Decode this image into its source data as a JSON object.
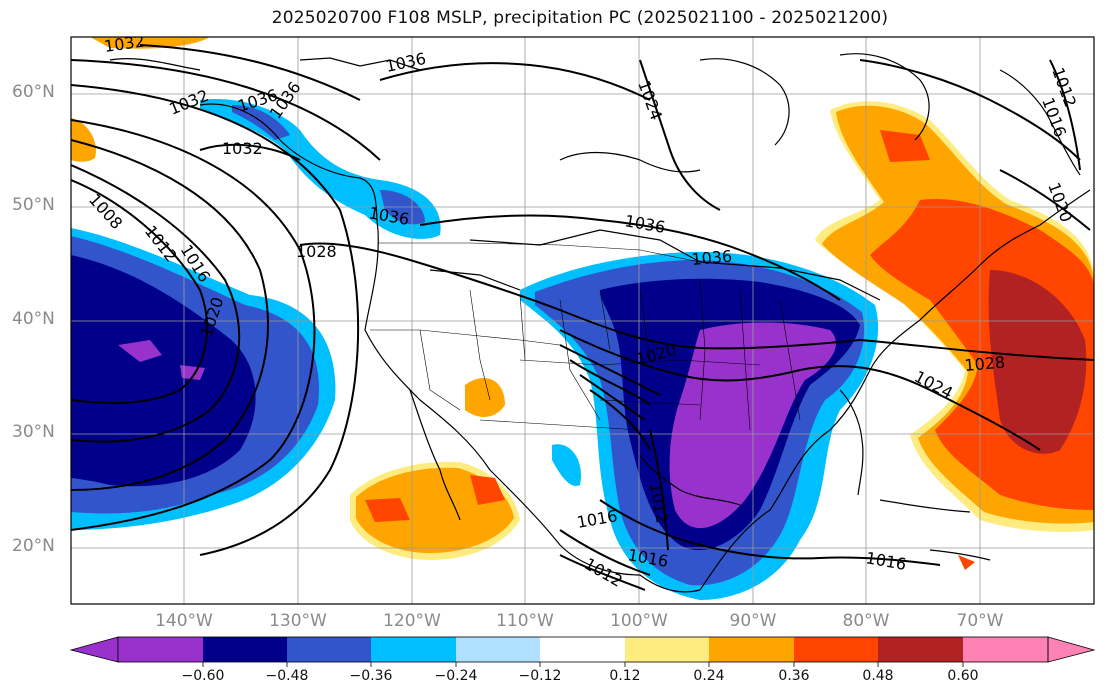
{
  "title": "2025020700 F108 MSLP, precipitation PC (2025021100 - 2025021200)",
  "lat_labels": [
    "60°N",
    "50°N",
    "40°N",
    "30°N",
    "20°N"
  ],
  "lon_labels": [
    "140°W",
    "130°W",
    "120°W",
    "110°W",
    "100°W",
    "90°W",
    "80°W",
    "70°W"
  ],
  "colorbar": {
    "ticks": [
      "−0.60",
      "−0.48",
      "−0.36",
      "−0.24",
      "−0.12",
      "0.12",
      "0.24",
      "0.36",
      "0.48",
      "0.60"
    ],
    "colors": [
      "#9932cc",
      "#00008b",
      "#3355cc",
      "#00bfff",
      "#b0e0ff",
      "#ffffff",
      "#ffec80",
      "#ffa500",
      "#ff4500",
      "#b22222",
      "#ff82b4"
    ]
  },
  "isobar_labels": [
    "1032",
    "1036",
    "1036",
    "1032",
    "1036",
    "1036",
    "1032",
    "1024",
    "1012",
    "1016",
    "1020",
    "1008",
    "1012",
    "1016",
    "1020",
    "1028",
    "1036",
    "1036",
    "1020",
    "1028",
    "1024",
    "1012",
    "1016",
    "1016",
    "1012",
    "1016"
  ]
}
